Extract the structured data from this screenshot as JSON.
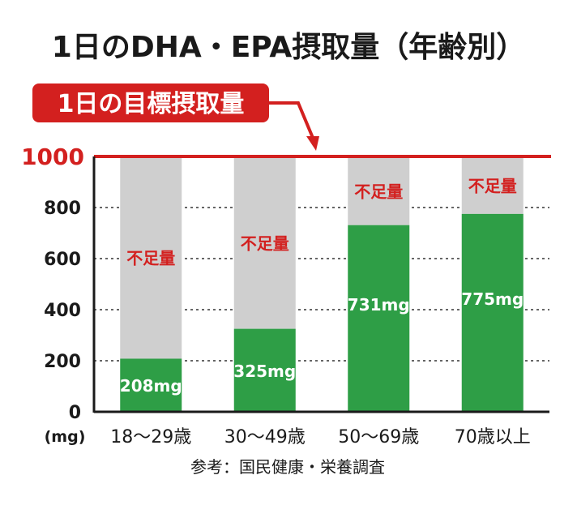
{
  "title": "1日のDHA・EPA摂取量（年齢別）",
  "target_label": "1日の目標摂取量",
  "unit_label": "(mg)",
  "shortfall_label": "不足量",
  "source": "参考：国民健康・栄養調査",
  "colors": {
    "intake": "#2e9e46",
    "shortfall": "#cfcfcf",
    "target_line": "#d3201f",
    "badge": "#d3201f"
  },
  "chart_data": {
    "type": "bar",
    "title": "1日のDHA・EPA摂取量（年齢別）",
    "ylabel": "(mg)",
    "categories": [
      "18〜29歳",
      "30〜49歳",
      "50〜69歳",
      "70歳以上"
    ],
    "values": [
      208,
      325,
      731,
      775
    ],
    "value_labels": [
      "208mg",
      "325mg",
      "731mg",
      "775mg"
    ],
    "target": 1000,
    "ylim": [
      0,
      1000
    ],
    "yticks": [
      "0",
      "200",
      "400",
      "600",
      "800",
      "1000"
    ],
    "grid": "dotted horizontal",
    "stacked_remainder_label": "不足量"
  }
}
